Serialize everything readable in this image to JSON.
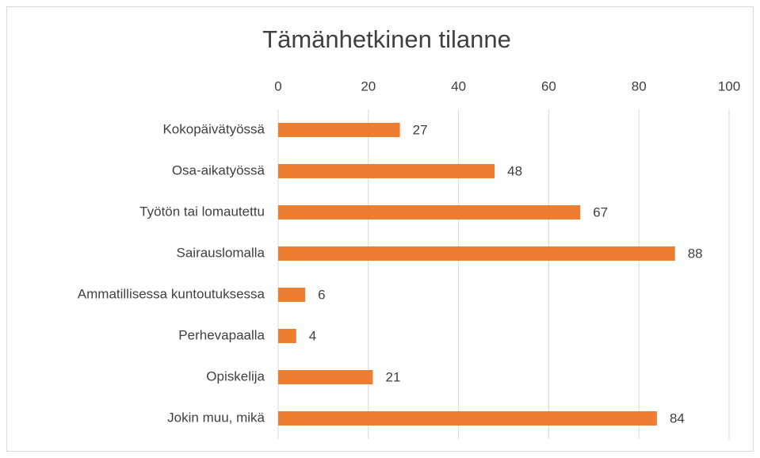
{
  "chart_data": {
    "type": "bar",
    "orientation": "horizontal",
    "title": "Tämänhetkinen tilanne",
    "categories": [
      "Kokopäivätyössä",
      "Osa-aikatyössä",
      "Työtön tai lomautettu",
      "Sairauslomalla",
      "Ammatillisessa kuntoutuksessa",
      "Perhevapaalla",
      "Opiskelija",
      "Jokin muu, mikä"
    ],
    "values": [
      27,
      48,
      67,
      88,
      6,
      4,
      21,
      84
    ],
    "color": "#ed7d31",
    "xlim": [
      0,
      100
    ],
    "xticks": [
      0,
      20,
      40,
      60,
      80,
      100
    ],
    "grid": true,
    "axis_position": "top"
  }
}
